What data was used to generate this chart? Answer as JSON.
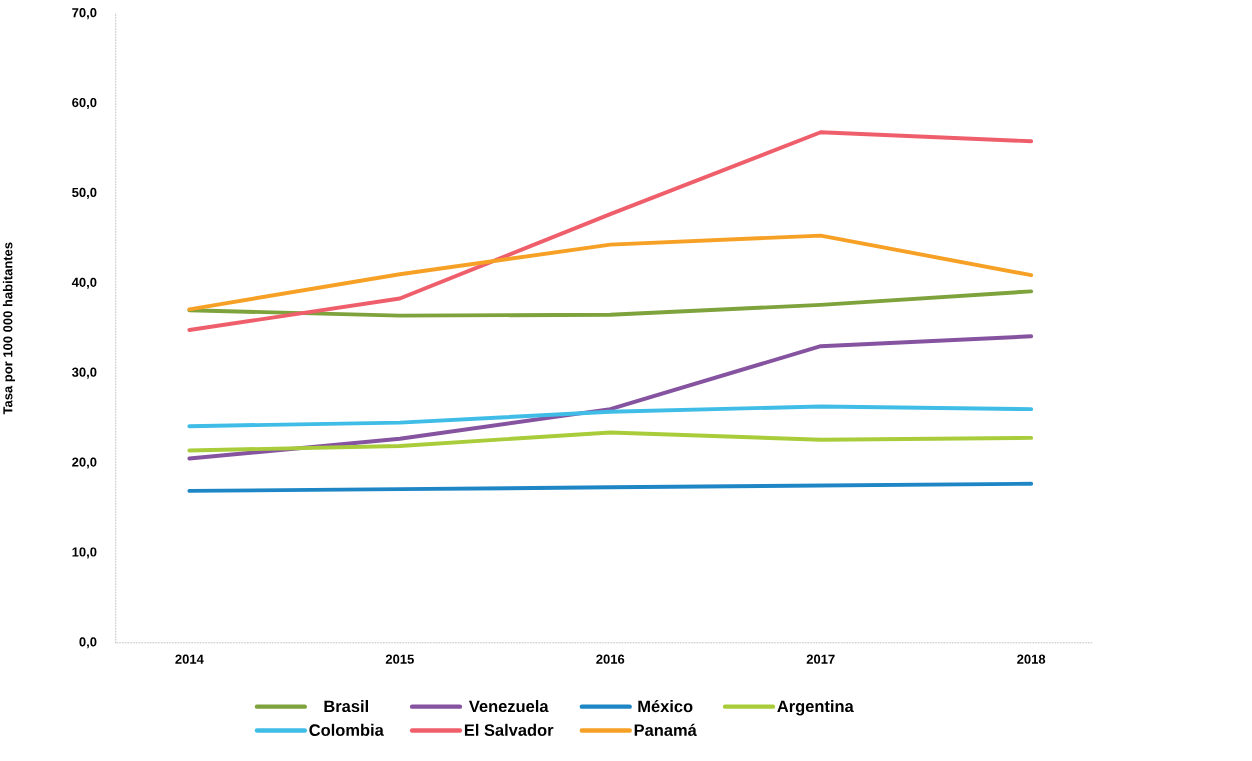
{
  "chart_data": {
    "type": "line",
    "ylabel": "Tasa por 100 000 habitantes",
    "categories": [
      "2014",
      "2015",
      "2016",
      "2017",
      "2018"
    ],
    "series": [
      {
        "name": "Brasil",
        "color": "#7ea23c",
        "values": [
          37.0,
          36.4,
          36.5,
          37.6,
          39.1
        ]
      },
      {
        "name": "Venezuela",
        "color": "#85539f",
        "values": [
          20.5,
          22.7,
          26.0,
          33.0,
          34.1
        ]
      },
      {
        "name": "México",
        "color": "#1f86c6",
        "values": [
          16.9,
          17.1,
          17.3,
          17.5,
          17.7
        ]
      },
      {
        "name": "Argentina",
        "color": "#a9cd3a",
        "values": [
          21.4,
          21.9,
          23.4,
          22.6,
          22.8
        ]
      },
      {
        "name": "Colombia",
        "color": "#3fbde6",
        "values": [
          24.1,
          24.5,
          25.7,
          26.3,
          26.0
        ]
      },
      {
        "name": "El Salvador",
        "color": "#ef5f6b",
        "values": [
          34.8,
          38.3,
          47.7,
          56.8,
          55.8
        ]
      },
      {
        "name": "Panamá",
        "color": "#f6a126",
        "values": [
          37.1,
          41.0,
          44.3,
          45.3,
          40.9
        ]
      }
    ],
    "ylim": [
      0,
      70
    ],
    "yticks": [
      {
        "value": 0,
        "label": "0,0"
      },
      {
        "value": 10,
        "label": "10,0"
      },
      {
        "value": 20,
        "label": "20,0"
      },
      {
        "value": 30,
        "label": "30,0"
      },
      {
        "value": 40,
        "label": "40,0"
      },
      {
        "value": 50,
        "label": "50,0"
      },
      {
        "value": 60,
        "label": "60,0"
      },
      {
        "value": 70,
        "label": "70,0"
      }
    ],
    "grid": false,
    "legend": "bottom",
    "marker": "none",
    "line_style": "solid"
  }
}
